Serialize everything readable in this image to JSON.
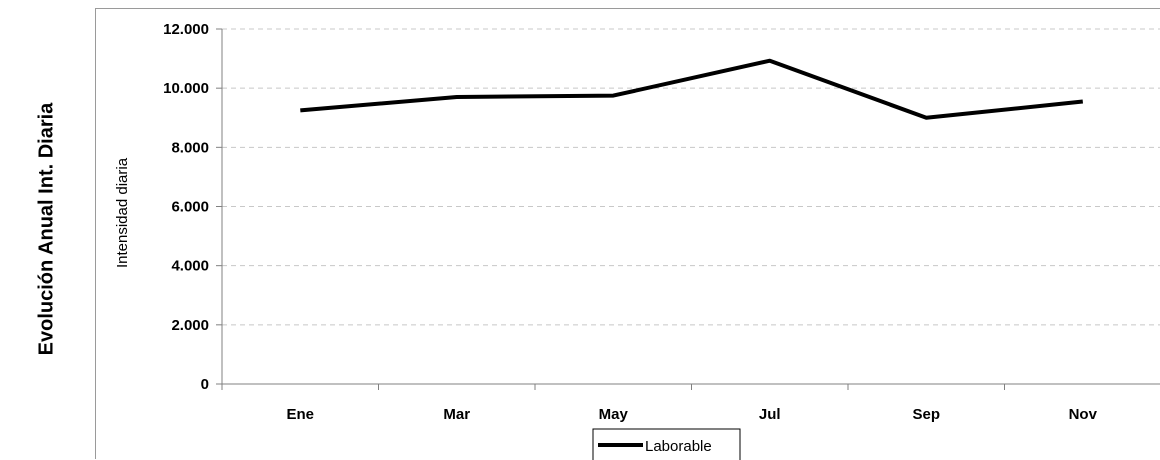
{
  "page_title": "Evolución Anual Int. Diaria",
  "chart_data": {
    "type": "line",
    "categories": [
      "Ene",
      "Mar",
      "May",
      "Jul",
      "Sep",
      "Nov"
    ],
    "series": [
      {
        "name": "Laborable",
        "values": [
          9250,
          9700,
          9750,
          10930,
          9000,
          9550
        ],
        "color": "#000000"
      }
    ],
    "ylabel": "Intensidad diaria",
    "ylim": [
      0,
      12000
    ],
    "yticks": [
      0,
      2000,
      4000,
      6000,
      8000,
      10000,
      12000
    ],
    "ytick_labels": [
      "0",
      "2.000",
      "4.000",
      "6.000",
      "8.000",
      "10.000",
      "12.000"
    ],
    "grid": true,
    "legend_position": "bottom-center"
  }
}
